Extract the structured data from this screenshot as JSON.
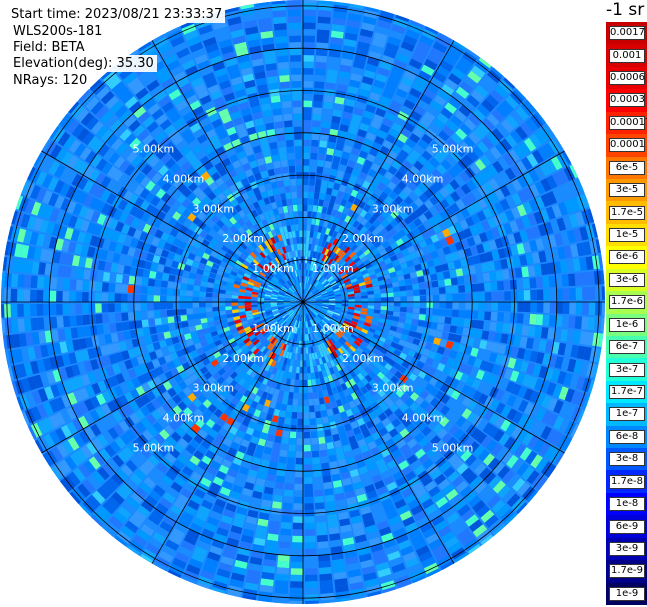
{
  "header": {
    "start_time": "Start time: 2023/08/21 23:33:37",
    "instrument": "WLS200s-181",
    "field": "Field: BETA",
    "elevation": "Elevation(deg): 35.30",
    "nrays": "NRays: 120"
  },
  "colorbar": {
    "unit_label": "-1 sr",
    "labels": [
      "0.0017",
      "0.001",
      "0.0006",
      "0.0003",
      "0.00017",
      "0.0001",
      "6e-5",
      "3e-5",
      "1.7e-5",
      "1e-5",
      "6e-6",
      "3e-6",
      "1.7e-6",
      "1e-6",
      "6e-7",
      "3e-7",
      "1.7e-7",
      "1e-7",
      "6e-8",
      "3e-8",
      "1.7e-8",
      "1e-8",
      "6e-9",
      "3e-9",
      "1.7e-9",
      "1e-9"
    ],
    "colors": [
      "#c80000",
      "#d80000",
      "#e80000",
      "#ff0000",
      "#ff2200",
      "#ff4400",
      "#ff7700",
      "#ff9900",
      "#ffbb00",
      "#ffdd00",
      "#ffff00",
      "#d8ff20",
      "#a8ff50",
      "#78ff80",
      "#48ffb0",
      "#20ffd8",
      "#00e8ff",
      "#00b8ff",
      "#0088ff",
      "#0058ff",
      "#0028ff",
      "#0000ff",
      "#0000d8",
      "#0000b0",
      "#000088",
      "#000060"
    ]
  },
  "range_rings": {
    "labels": [
      "1.00km",
      "2.00km",
      "3.00km",
      "4.00km",
      "5.00km"
    ]
  }
}
